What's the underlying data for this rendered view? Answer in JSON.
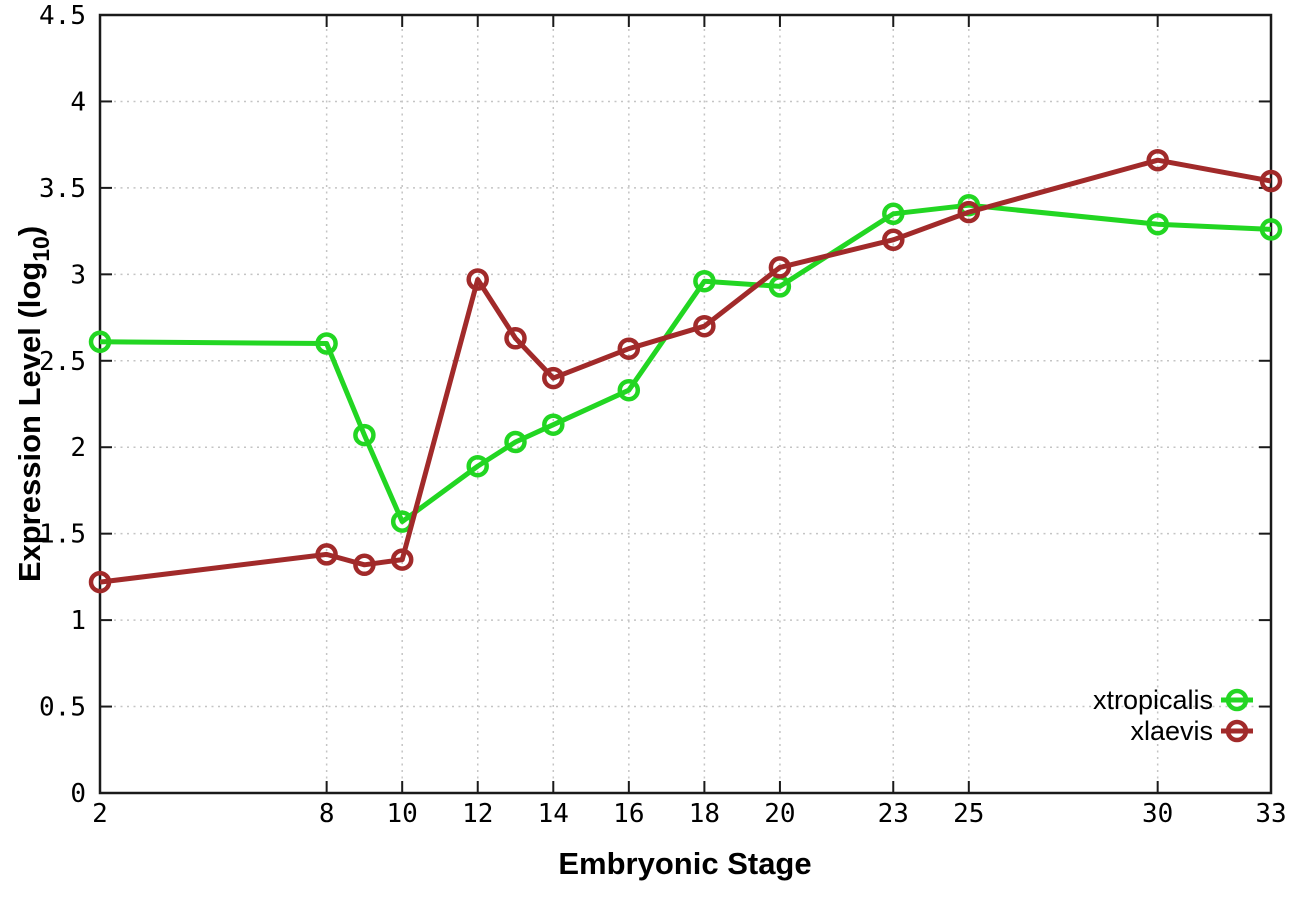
{
  "chart_data": {
    "type": "line",
    "title": "",
    "xlabel": "Embryonic Stage",
    "ylabel_parts": {
      "pre": "Expression Level (log",
      "sub": "10",
      "post": ")"
    },
    "xlim": [
      2,
      33
    ],
    "ylim": [
      0,
      4.5
    ],
    "grid": true,
    "legend_position": "bottom-right-inside",
    "x_ticks": [
      2,
      8,
      10,
      12,
      14,
      16,
      18,
      20,
      23,
      25,
      30,
      33
    ],
    "x_tick_labels": [
      "2",
      "8",
      "10",
      "12",
      "14",
      "16",
      "18",
      "20",
      "23",
      "25",
      "30",
      "33"
    ],
    "y_ticks": [
      0,
      0.5,
      1,
      1.5,
      2,
      2.5,
      3,
      3.5,
      4,
      4.5
    ],
    "y_tick_labels": [
      "0",
      "0.5",
      "1",
      "1.5",
      "2",
      "2.5",
      "3",
      "3.5",
      "4",
      "4.5"
    ],
    "x": [
      2,
      8,
      9,
      10,
      12,
      13,
      14,
      16,
      18,
      20,
      23,
      25,
      30,
      33
    ],
    "series": [
      {
        "name": "xtropicalis",
        "color": "#22d622",
        "marker": "open-circle",
        "values": [
          2.61,
          2.6,
          2.07,
          1.57,
          1.89,
          2.03,
          2.13,
          2.33,
          2.96,
          2.93,
          3.35,
          3.4,
          3.29,
          3.26
        ]
      },
      {
        "name": "xlaevis",
        "color": "#a12a2a",
        "marker": "open-circle",
        "values": [
          1.22,
          1.38,
          1.32,
          1.35,
          2.97,
          2.63,
          2.4,
          2.57,
          2.7,
          3.04,
          3.2,
          3.36,
          3.66,
          3.54
        ]
      }
    ]
  },
  "colors": {
    "background": "#ffffff",
    "axis": "#1a1a1a",
    "grid": "#c4c4c4",
    "text": "#000000"
  }
}
